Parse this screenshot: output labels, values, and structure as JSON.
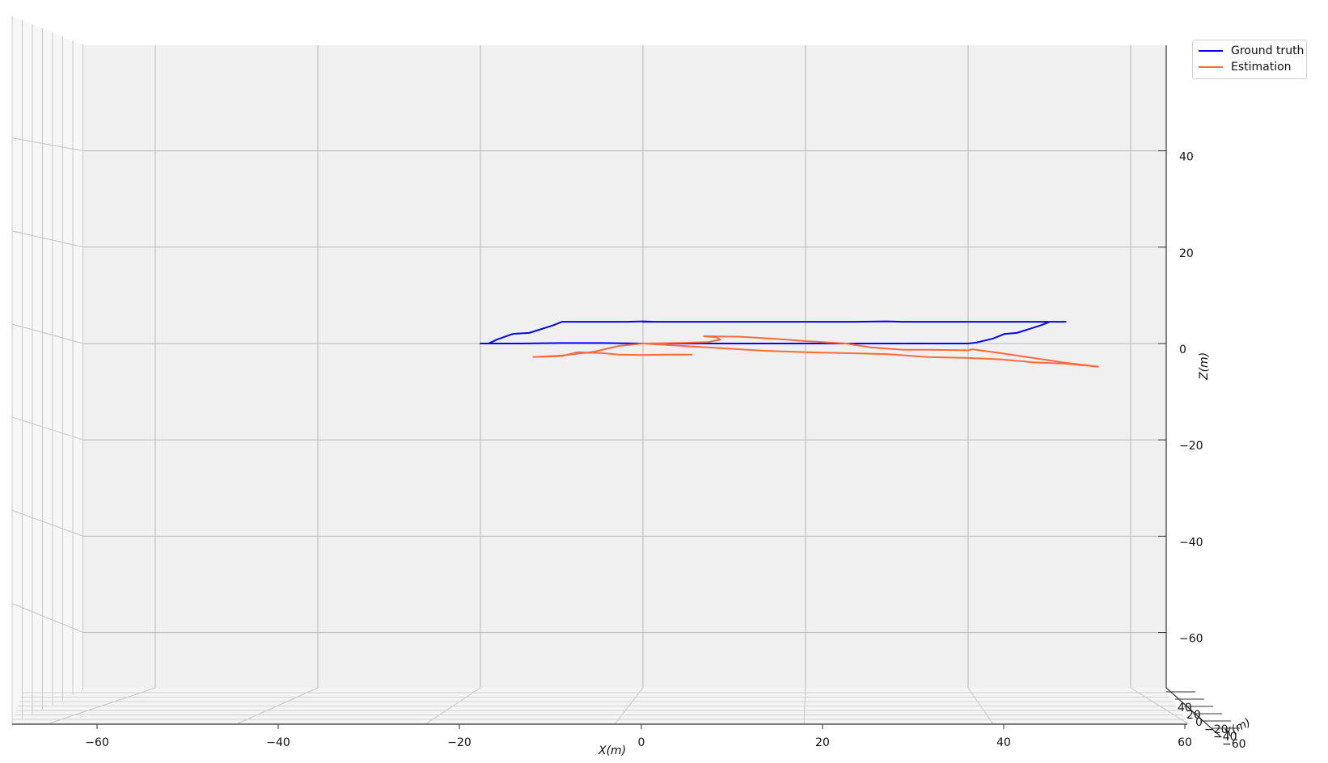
{
  "chart_data": {
    "type": "line",
    "projection": "3d",
    "xlabel": "X(m)",
    "ylabel": "Y(m)",
    "zlabel": "Z(m)",
    "xlim": [
      -60,
      60
    ],
    "zlim": [
      -60,
      40
    ],
    "x_ticks": [
      "−60",
      "−40",
      "−20",
      "0",
      "20",
      "40",
      "60"
    ],
    "z_ticks": [
      "40",
      "20",
      "0",
      "−20",
      "−40",
      "−60"
    ],
    "y_ticks": [
      "40",
      "20",
      "0",
      "−20",
      "−40",
      "−60"
    ],
    "grid": true,
    "legend_position": "top-right",
    "series": [
      {
        "name": "Ground truth",
        "color": "#0000ff",
        "x": [
          -20.0,
          -19.0,
          -18.0,
          -16.0,
          -14.0,
          -12.5,
          -11.0,
          -10.0,
          -9.5,
          -6.0,
          -2.0,
          0.0,
          1.5,
          0.0,
          6.0,
          10.0,
          14.0,
          18.0,
          22.0,
          26.0,
          30.0,
          32.0,
          34.0,
          38.0,
          42.0,
          46.0,
          50.0,
          51.0,
          52.0,
          50.0,
          49.0,
          46.0,
          44.5,
          43.0,
          41.0,
          40.0,
          35.0,
          30.0,
          25.0,
          20.0,
          15.0,
          10.0,
          5.0,
          0.0,
          -5.0,
          -10.0,
          -15.0,
          -18.0,
          -20.0
        ],
        "z": [
          0.0,
          0.0,
          0.8,
          2.0,
          2.2,
          3.0,
          3.8,
          4.5,
          4.5,
          4.5,
          4.5,
          4.6,
          4.5,
          4.5,
          4.5,
          4.5,
          4.5,
          4.5,
          4.5,
          4.5,
          4.6,
          4.5,
          4.5,
          4.5,
          4.5,
          4.5,
          4.5,
          4.5,
          4.5,
          4.5,
          3.8,
          2.2,
          2.0,
          1.0,
          0.2,
          0.0,
          0.0,
          0.0,
          0.0,
          0.0,
          0.0,
          0.0,
          0.0,
          0.0,
          0.1,
          0.1,
          0.0,
          0.0,
          0.0
        ]
      },
      {
        "name": "Estimation",
        "color": "#ff6a3d",
        "x": [
          6.0,
          3.0,
          0.0,
          -3.0,
          -5.0,
          -8.0,
          -10.0,
          -13.5,
          -10.0,
          -6.0,
          -3.0,
          0.0,
          4.0,
          8.0,
          9.5,
          9.0,
          7.5,
          8.0,
          12.0,
          16.0,
          20.0,
          25.0,
          28.0,
          32.0,
          35.0,
          40.0,
          40.5,
          44.0,
          48.0,
          52.0,
          56.0,
          52.0,
          48.0,
          44.0,
          40.0,
          35.0,
          30.0,
          25.0,
          20.0,
          15.0,
          10.0,
          5.0,
          0.0
        ],
        "z": [
          -2.3,
          -2.3,
          -2.4,
          -2.3,
          -2.0,
          -1.8,
          -2.6,
          -2.8,
          -2.5,
          -1.7,
          -0.5,
          0.0,
          0.1,
          0.3,
          0.8,
          1.3,
          1.5,
          1.5,
          1.4,
          1.0,
          0.5,
          0.0,
          -0.8,
          -1.3,
          -1.3,
          -1.4,
          -1.2,
          -2.0,
          -3.0,
          -4.0,
          -4.8,
          -4.2,
          -3.9,
          -3.3,
          -3.0,
          -2.8,
          -2.2,
          -2.0,
          -1.8,
          -1.5,
          -1.0,
          -0.5,
          0.0
        ]
      }
    ]
  }
}
